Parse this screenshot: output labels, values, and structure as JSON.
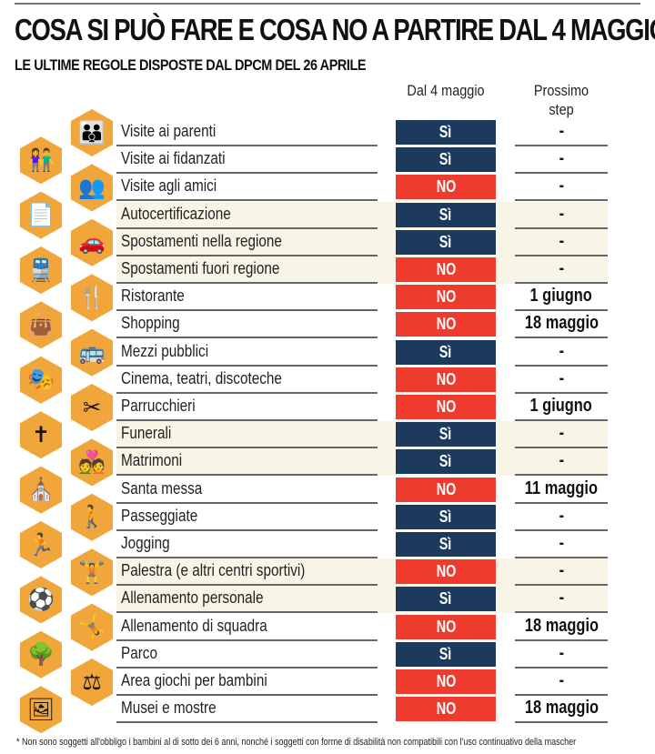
{
  "title": "COSA SI PUÒ FARE E COSA NO A PARTIRE DAL 4 MAGGIO",
  "subtitle": "LE ULTIME REGOLE DISPOSTE DAL DPCM DEL 26 APRILE",
  "columns": {
    "status": "Dal 4 maggio",
    "next_line1": "Prossimo",
    "next_line2": "step"
  },
  "colors": {
    "si": "#1b3a5c",
    "no": "#ee3b2e",
    "hex": "#f0a63a",
    "tint": "#f8f4e6"
  },
  "rows": [
    {
      "label": "Visite ai parenti",
      "status": "Sì",
      "next": "-",
      "icon": "family-icon",
      "glyph": "👪"
    },
    {
      "label": "Visite ai fidanzati",
      "status": "Sì",
      "next": "-",
      "icon": "couple-icon",
      "glyph": "👫"
    },
    {
      "label": "Visite agli amici",
      "status": "NO",
      "next": "-",
      "icon": "friends-icon",
      "glyph": "👥"
    },
    {
      "label": "Autocertificazione",
      "status": "Sì",
      "next": "-",
      "icon": "document-icon",
      "glyph": "📄"
    },
    {
      "label": "Spostamenti nella regione",
      "status": "Sì",
      "next": "-",
      "icon": "car-icon",
      "glyph": "🚗"
    },
    {
      "label": "Spostamenti fuori regione",
      "status": "NO",
      "next": "-",
      "icon": "train-icon",
      "glyph": "🚆"
    },
    {
      "label": "Ristorante",
      "status": "NO",
      "next": "1 giugno",
      "icon": "cutlery-icon",
      "glyph": "🍴"
    },
    {
      "label": "Shopping",
      "status": "NO",
      "next": "18 maggio",
      "icon": "shopping-bag-icon",
      "glyph": "👜"
    },
    {
      "label": "Mezzi pubblici",
      "status": "Sì",
      "next": "-",
      "icon": "bus-icon",
      "glyph": "🚌"
    },
    {
      "label": "Cinema, teatri, discoteche",
      "status": "NO",
      "next": "-",
      "icon": "theater-masks-icon",
      "glyph": "🎭"
    },
    {
      "label": "Parrucchieri",
      "status": "NO",
      "next": "1 giugno",
      "icon": "scissors-comb-icon",
      "glyph": "✂"
    },
    {
      "label": "Funerali",
      "status": "Sì",
      "next": "-",
      "icon": "tombstone-icon",
      "glyph": "✝"
    },
    {
      "label": "Matrimoni",
      "status": "Sì",
      "next": "-",
      "icon": "wedding-icon",
      "glyph": "💑"
    },
    {
      "label": "Santa messa",
      "status": "NO",
      "next": "11 maggio",
      "icon": "church-icon",
      "glyph": "⛪"
    },
    {
      "label": "Passeggiate",
      "status": "Sì",
      "next": "-",
      "icon": "hiker-icon",
      "glyph": "🚶"
    },
    {
      "label": "Jogging",
      "status": "Sì",
      "next": "-",
      "icon": "runner-icon",
      "glyph": "🏃"
    },
    {
      "label": "Palestra (e altri centri sportivi)",
      "status": "NO",
      "next": "-",
      "icon": "weightlifter-icon",
      "glyph": "🏋"
    },
    {
      "label": "Allenamento personale",
      "status": "Sì",
      "next": "-",
      "icon": "soccer-player-icon",
      "glyph": "⚽"
    },
    {
      "label": "Allenamento di squadra",
      "status": "NO",
      "next": "18 maggio",
      "icon": "team-icon",
      "glyph": "🤸"
    },
    {
      "label": "Parco",
      "status": "Sì",
      "next": "-",
      "icon": "tree-icon",
      "glyph": "🌳"
    },
    {
      "label": "Area giochi per bambini",
      "status": "NO",
      "next": "-",
      "icon": "seesaw-icon",
      "glyph": "⚖"
    },
    {
      "label": "Musei e mostre",
      "status": "NO",
      "next": "18 maggio",
      "icon": "frame-icon",
      "glyph": "🖼"
    }
  ],
  "footnote": "* Non sono soggetti all'obbligo i bambini al di sotto dei 6 anni, nonché i soggetti con forme di disabilità non compatibili con l'uso continuativo della mascher"
}
